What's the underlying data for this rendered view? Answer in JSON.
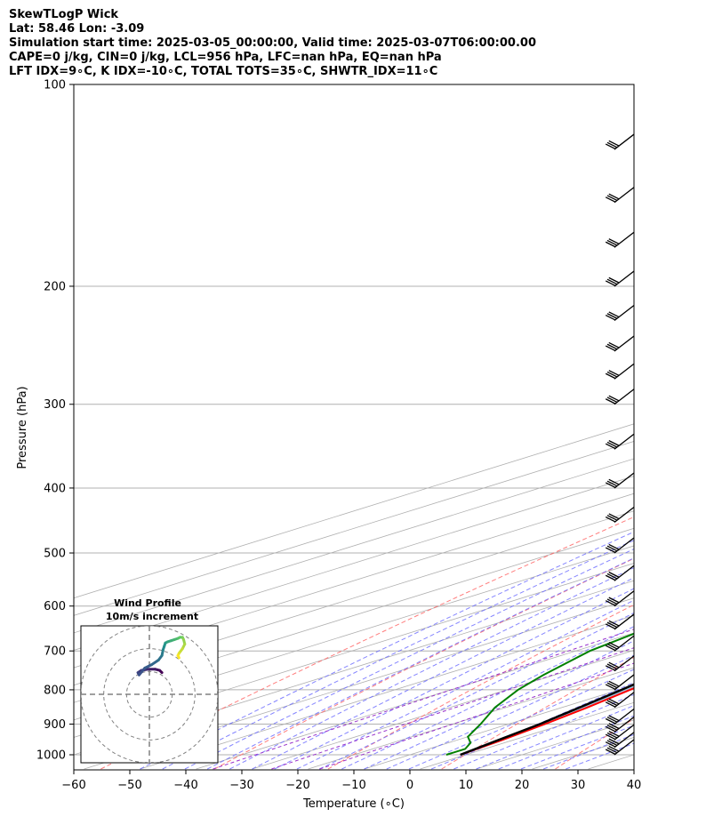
{
  "header": {
    "line1": "SkewTLogP Wick",
    "line2": "Lat: 58.46   Lon: -3.09",
    "line3": "Simulation start time: 2025-03-05_00:00:00, Valid time: 2025-03-07T06:00:00.00",
    "line4": "CAPE=0 j/kg, CIN=0 j/kg, LCL=956 hPa, LFC=nan hPa, EQ=nan hPa",
    "line5": "LFT IDX=9∘C, K IDX=-10∘C, TOTAL TOTS=35∘C, SHWTR_IDX=11∘C"
  },
  "chart_data": {
    "type": "line",
    "title": "SkewTLogP Wick",
    "xlabel": "Temperature (∘C)",
    "ylabel": "Pressure (hPa)",
    "xlim": [
      -60,
      40
    ],
    "ylim": [
      1050,
      100
    ],
    "y_scale": "log",
    "x_ticks": [
      "−60",
      "−50",
      "−40",
      "−30",
      "−20",
      "−10",
      "0",
      "10",
      "20",
      "30",
      "40"
    ],
    "y_ticks": [
      "100",
      "200",
      "300",
      "400",
      "500",
      "600",
      "700",
      "800",
      "900",
      "1000"
    ],
    "grid": true,
    "colors": {
      "temperature": "#ff0000",
      "dewpoint": "#008000",
      "parcel": "#000000",
      "shade": "#a2c6e0",
      "dry_adiabat": "#ff6666",
      "moist_adiabat": "#6666ff",
      "mixing_ratio": "#9933cc",
      "isotherm": "#b0b0b0",
      "grid": "#b0b0b0"
    },
    "series": [
      {
        "key": "temperature",
        "p": [
          1000,
          950,
          900,
          850,
          800,
          750,
          700,
          650,
          600,
          550,
          500,
          450,
          400,
          360,
          330,
          300,
          270,
          250,
          235,
          220,
          200,
          180,
          165,
          150,
          130,
          115,
          105,
          100
        ],
        "t": [
          9,
          8,
          6.5,
          4.5,
          2,
          -0.5,
          -3,
          -6,
          -9.5,
          -13,
          -17,
          -20,
          -25,
          -28,
          -31.5,
          -35,
          -39,
          -43,
          -45.5,
          -46,
          -44.5,
          -42,
          -42.5,
          -44,
          -46.5,
          -49,
          -51,
          -52
        ]
      },
      {
        "key": "dewpoint",
        "p": [
          1000,
          980,
          960,
          940,
          900,
          850,
          800,
          760,
          700,
          650,
          600,
          550,
          500,
          450,
          400,
          370,
          350,
          310,
          280,
          260,
          240,
          220,
          200,
          185,
          165,
          140,
          115,
          100
        ],
        "t": [
          6.5,
          6.5,
          4,
          0,
          -5,
          -12,
          -18,
          -22,
          -27.5,
          -30,
          -28,
          -22,
          -15,
          -14.5,
          -18,
          -20,
          -23,
          -30,
          -36.5,
          -40,
          -44,
          -47,
          -48.5,
          -50.5,
          -60,
          -61,
          -60,
          -60
        ]
      },
      {
        "key": "parcel",
        "p": [
          1000,
          956,
          900,
          800,
          700,
          600,
          500,
          400,
          300,
          200,
          150,
          100
        ],
        "t": [
          9,
          7.5,
          5.6,
          0.5,
          -6,
          -14,
          -24,
          -37,
          -54,
          -80,
          -96,
          -119
        ]
      }
    ],
    "wind_barbs_p": [
      1000,
      975,
      950,
      925,
      900,
      850,
      800,
      750,
      700,
      650,
      600,
      550,
      500,
      450,
      400,
      350,
      300,
      275,
      250,
      225,
      200,
      175,
      150,
      125
    ],
    "inset": {
      "title": "Wind Profile",
      "subtitle": "10m/s increment",
      "rings": [
        10,
        20,
        30
      ],
      "range": 30,
      "hodograph_u": [
        5.5,
        4.5,
        2.5,
        -0.5,
        -3.5,
        -5,
        -4.5,
        -2,
        1,
        4,
        5.5,
        6,
        6.5,
        7,
        8,
        9.5,
        11,
        12.5,
        13.5,
        14.5,
        15,
        15.5,
        14.5,
        13,
        12.5,
        13
      ],
      "hodograph_v": [
        9.5,
        10.5,
        11,
        11,
        10.5,
        9.5,
        8.5,
        11.5,
        13,
        15,
        17,
        19.5,
        21,
        22.5,
        23,
        23.5,
        24,
        24.5,
        25,
        25,
        24,
        22,
        20,
        18,
        17,
        16
      ]
    }
  }
}
